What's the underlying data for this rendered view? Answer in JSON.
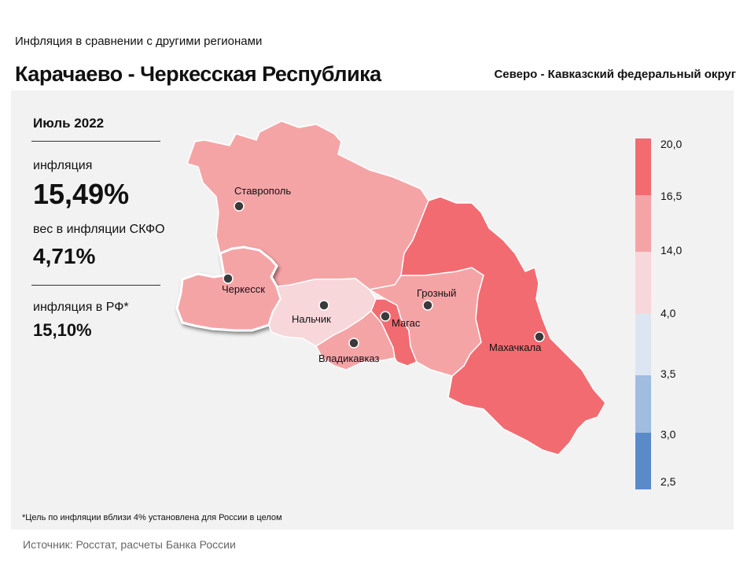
{
  "header": {
    "subtitle": "Инфляция в сравнении с другими регионами",
    "title": "Карачаево - Черкесская Республика",
    "district": "Северо - Кавказский федеральный округ"
  },
  "info": {
    "period": "Июль 2022",
    "inflation_label": "инфляция",
    "inflation_value": "15,49%",
    "weight_label": "вес в инфляции СКФО",
    "weight_value": "4,71%",
    "rf_label": "инфляция в РФ*",
    "rf_value": "15,10%"
  },
  "map": {
    "cities": [
      {
        "name": "Ставрополь"
      },
      {
        "name": "Черкесск"
      },
      {
        "name": "Нальчик"
      },
      {
        "name": "Магас"
      },
      {
        "name": "Грозный"
      },
      {
        "name": "Владикавказ"
      },
      {
        "name": "Махачкала"
      }
    ],
    "regions": [
      {
        "region": "Ставропольский край",
        "bin": "14,0–16,5",
        "color": "#f5a4a6"
      },
      {
        "region": "Карачаево-Черкесская Республика",
        "bin": "14,0–16,5",
        "color": "#f5a4a6",
        "highlighted": true
      },
      {
        "region": "Кабардино-Балкарская Республика",
        "bin": "4,0–14,0",
        "color": "#f7d7da"
      },
      {
        "region": "Республика Северная Осетия — Алания",
        "bin": "14,0–16,5",
        "color": "#f5a4a6"
      },
      {
        "region": "Республика Ингушетия",
        "bin": "16,5–20,0",
        "color": "#f26b70"
      },
      {
        "region": "Чеченская Республика",
        "bin": "14,0–16,5",
        "color": "#f5a4a6"
      },
      {
        "region": "Республика Дагестан",
        "bin": "16,5–20,0",
        "color": "#f26b70"
      }
    ],
    "legend": {
      "ticks": [
        "20,0",
        "16,5",
        "14,0",
        "4,0",
        "3,5",
        "3,0",
        "2,5"
      ],
      "colors": [
        "#f26b70",
        "#f5a4a6",
        "#f7d7da",
        "#dce6f3",
        "#a0bcdf",
        "#5b8ac9"
      ]
    }
  },
  "footnote": "*Цель по инфляции вблизи 4% установлена для России в целом",
  "source": "Источник: Росстат, расчеты Банка России"
}
